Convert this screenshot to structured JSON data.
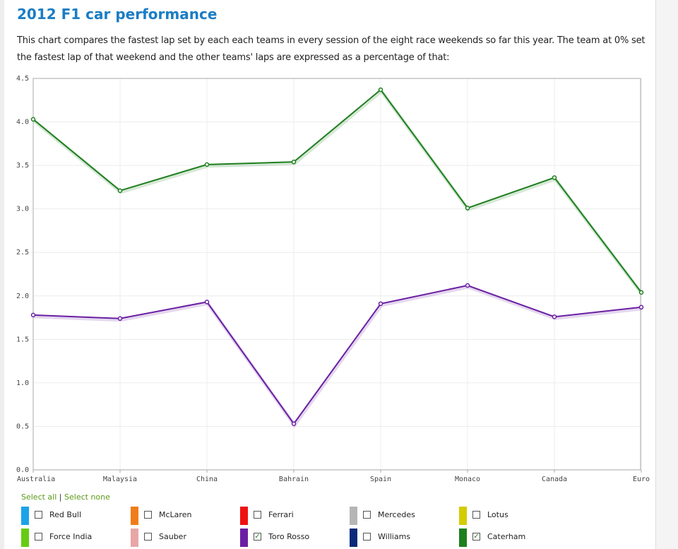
{
  "title": "2012 F1 car performance",
  "intro": "This chart compares the fastest lap set by each each teams in every session of the eight race weekends so far this year. The team at 0% set the fastest lap of that weekend and the other teams' laps are expressed as a percentage of that:",
  "controls": {
    "select_all": "Select all",
    "separator": "|",
    "select_none": "Select none"
  },
  "chart_data": {
    "type": "line",
    "categories": [
      "Australia",
      "Malaysia",
      "China",
      "Bahrain",
      "Spain",
      "Monaco",
      "Canada",
      "Europe"
    ],
    "category_labels_visible": [
      "Australia",
      "Malaysia",
      "China",
      "Bahrain",
      "Spain",
      "Monaco",
      "Canada",
      "Euro"
    ],
    "ylim": [
      0,
      4.5
    ],
    "yticks": [
      "0.0",
      "0.5",
      "1.0",
      "1.5",
      "2.0",
      "2.5",
      "3.0",
      "3.5",
      "4.0",
      "4.5"
    ],
    "grid": true,
    "series": [
      {
        "name": "Caterham",
        "color": "#1e7f1e",
        "values": [
          4.03,
          3.21,
          3.51,
          3.54,
          4.37,
          3.01,
          3.36,
          2.04
        ]
      },
      {
        "name": "Toro Rosso",
        "color": "#6a1fa3",
        "values": [
          1.78,
          1.74,
          1.93,
          0.53,
          1.91,
          2.12,
          1.76,
          1.87
        ]
      }
    ]
  },
  "legend": [
    {
      "name": "Red Bull",
      "color": "#1aa3e8",
      "checked": false,
      "check_mark": ""
    },
    {
      "name": "McLaren",
      "color": "#f07d18",
      "checked": false,
      "check_mark": ""
    },
    {
      "name": "Ferrari",
      "color": "#ee1111",
      "checked": false,
      "check_mark": ""
    },
    {
      "name": "Mercedes",
      "color": "#b5b5b5",
      "checked": false,
      "check_mark": ""
    },
    {
      "name": "Lotus",
      "color": "#d4cc00",
      "checked": false,
      "check_mark": ""
    },
    {
      "name": "Force India",
      "color": "#66cc11",
      "checked": false,
      "check_mark": ""
    },
    {
      "name": "Sauber",
      "color": "#e8a6a6",
      "checked": false,
      "check_mark": ""
    },
    {
      "name": "Toro Rosso",
      "color": "#6a1fa3",
      "checked": true,
      "check_mark": "✓"
    },
    {
      "name": "Williams",
      "color": "#0a2a7a",
      "checked": false,
      "check_mark": ""
    },
    {
      "name": "Caterham",
      "color": "#1e7f1e",
      "checked": true,
      "check_mark": "✓"
    }
  ]
}
